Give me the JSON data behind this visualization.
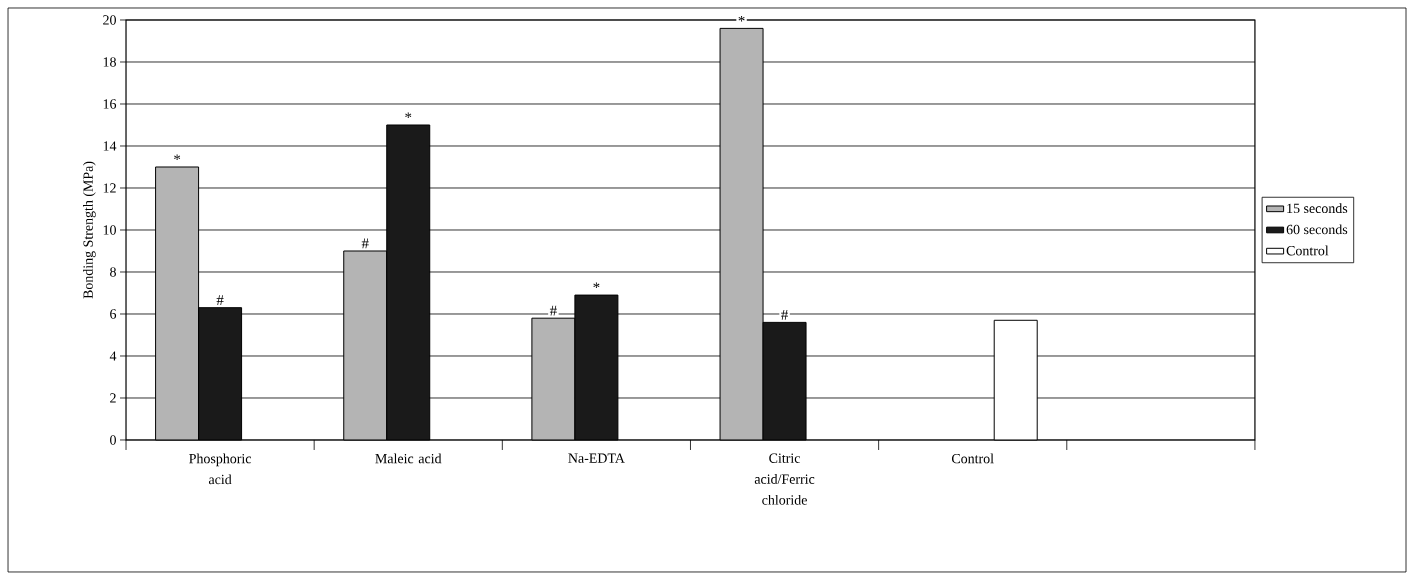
{
  "chart_data": {
    "type": "bar",
    "ylabel": "Bonding Strength (MPa)",
    "categories": [
      "Phosphoric acid",
      "Maleic acid",
      "Na-EDTA",
      "Citric acid/Ferric chloride",
      "Control",
      null
    ],
    "series": [
      {
        "name": "15 seconds",
        "color": "#b4b4b4",
        "values": [
          13.0,
          9.0,
          5.8,
          19.6,
          null,
          null
        ]
      },
      {
        "name": "60 seconds",
        "color": "#1a1a1a",
        "values": [
          6.3,
          15.0,
          6.9,
          5.6,
          null,
          null
        ]
      },
      {
        "name": "Control",
        "color": "#ffffff",
        "values": [
          null,
          null,
          null,
          null,
          5.7,
          null
        ]
      }
    ],
    "ylim": [
      0,
      20
    ],
    "yticks": [
      0,
      2,
      4,
      6,
      8,
      10,
      12,
      14,
      16,
      18,
      20
    ],
    "grid": "y",
    "legend": "right",
    "annotations": [
      "*",
      "#",
      "#",
      "*",
      "#",
      "*",
      "*",
      "#"
    ]
  }
}
